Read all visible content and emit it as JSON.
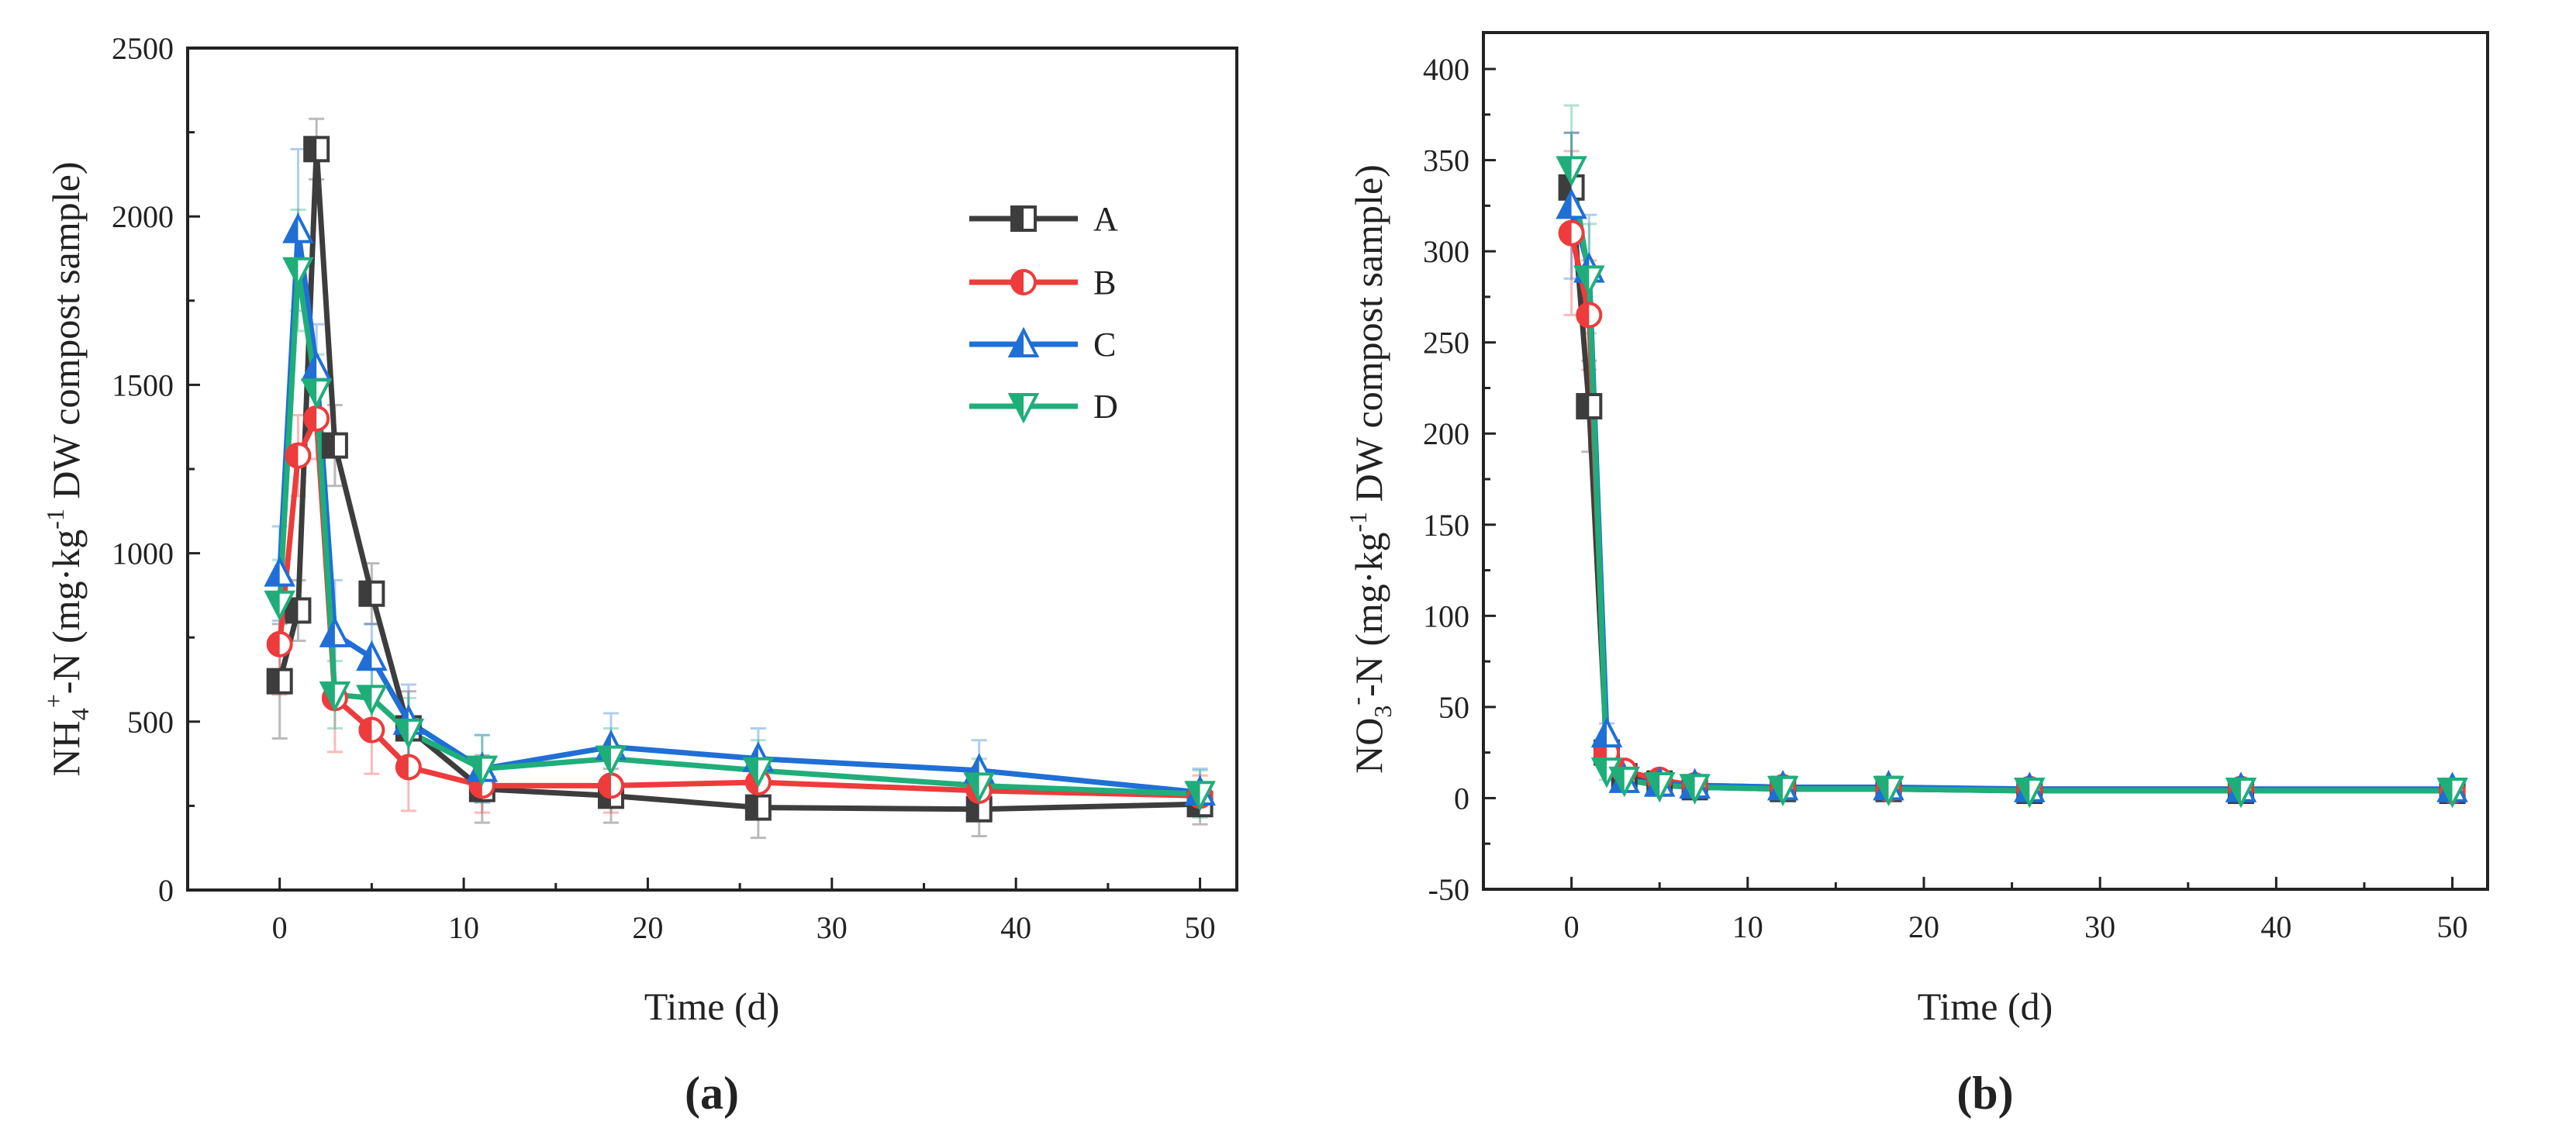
{
  "colors": {
    "A": "#3d3d3d",
    "B": "#ee3b3b",
    "C": "#1f6fd6",
    "D": "#1fae7a"
  },
  "legend": [
    {
      "name": "A",
      "marker": "square"
    },
    {
      "name": "B",
      "marker": "circle"
    },
    {
      "name": "C",
      "marker": "triangle-up"
    },
    {
      "name": "D",
      "marker": "triangle-down"
    }
  ],
  "chart_data": [
    {
      "panel_label": "(a)",
      "type": "line",
      "xlabel": "Time (d)",
      "ylabel_parts": {
        "nh_prefix": "NH",
        "sub4": "4",
        "sup_plus": "+",
        "n_part": "-N (mg·kg",
        "sup_minus1": "-1",
        "rest": " DW compost sample)"
      },
      "xlim": [
        -5,
        52
      ],
      "ylim": [
        0,
        2500
      ],
      "xticks": [
        0,
        10,
        20,
        30,
        40,
        50
      ],
      "yticks": [
        0,
        500,
        1000,
        1500,
        2000,
        2500
      ],
      "series": [
        {
          "name": "A",
          "x": [
            0,
            1,
            2,
            3,
            5,
            7,
            11,
            18,
            26,
            38,
            50
          ],
          "y": [
            620,
            830,
            2200,
            1320,
            880,
            480,
            300,
            280,
            245,
            240,
            255
          ],
          "err": [
            170,
            90,
            90,
            120,
            90,
            110,
            100,
            80,
            90,
            80,
            60
          ]
        },
        {
          "name": "B",
          "x": [
            0,
            1,
            2,
            3,
            5,
            7,
            11,
            18,
            26,
            38,
            50
          ],
          "y": [
            730,
            1290,
            1400,
            570,
            475,
            365,
            310,
            310,
            320,
            295,
            280
          ],
          "err": [
            150,
            120,
            120,
            160,
            130,
            130,
            80,
            80,
            70,
            70,
            60
          ]
        },
        {
          "name": "C",
          "x": [
            0,
            1,
            2,
            3,
            5,
            7,
            11,
            18,
            26,
            38,
            50
          ],
          "y": [
            940,
            1960,
            1550,
            760,
            690,
            500,
            360,
            425,
            390,
            355,
            290
          ],
          "err": [
            140,
            240,
            130,
            160,
            100,
            110,
            100,
            100,
            90,
            90,
            70
          ]
        },
        {
          "name": "D",
          "x": [
            0,
            1,
            2,
            3,
            5,
            7,
            11,
            18,
            26,
            38,
            50
          ],
          "y": [
            850,
            1840,
            1480,
            580,
            570,
            470,
            360,
            390,
            355,
            310,
            285
          ],
          "err": [
            130,
            180,
            110,
            100,
            100,
            100,
            100,
            90,
            90,
            80,
            70
          ]
        }
      ]
    },
    {
      "panel_label": "(b)",
      "type": "line",
      "xlabel": "Time (d)",
      "ylabel_parts": {
        "no_prefix": "NO",
        "sub3": "3",
        "sup_minus": "-",
        "n_part": "-N (mg·kg",
        "sup_minus1": "-1",
        "rest": " DW compost sample)"
      },
      "xlim": [
        -5,
        52
      ],
      "ylim": [
        -50,
        420
      ],
      "xticks": [
        0,
        10,
        20,
        30,
        40,
        50
      ],
      "yticks": [
        -50,
        0,
        50,
        100,
        150,
        200,
        250,
        300,
        350,
        400
      ],
      "series": [
        {
          "name": "A",
          "x": [
            0,
            1,
            2,
            3,
            5,
            7,
            12,
            18,
            26,
            38,
            50
          ],
          "y": [
            335,
            215,
            25,
            12,
            8,
            6,
            5,
            5,
            4,
            4,
            4
          ],
          "err": [
            30,
            25,
            5,
            3,
            2,
            2,
            1,
            1,
            1,
            1,
            1
          ]
        },
        {
          "name": "B",
          "x": [
            0,
            1,
            2,
            3,
            5,
            7,
            12,
            18,
            26,
            38,
            50
          ],
          "y": [
            310,
            265,
            25,
            15,
            10,
            7,
            6,
            5,
            5,
            5,
            4
          ],
          "err": [
            45,
            30,
            5,
            3,
            2,
            2,
            1,
            1,
            1,
            1,
            1
          ]
        },
        {
          "name": "C",
          "x": [
            0,
            1,
            2,
            3,
            5,
            7,
            12,
            18,
            26,
            38,
            50
          ],
          "y": [
            325,
            290,
            35,
            10,
            8,
            7,
            6,
            6,
            5,
            5,
            5
          ],
          "err": [
            40,
            30,
            6,
            3,
            2,
            2,
            1,
            1,
            1,
            1,
            1
          ]
        },
        {
          "name": "D",
          "x": [
            0,
            1,
            2,
            3,
            5,
            7,
            12,
            18,
            26,
            38,
            50
          ],
          "y": [
            345,
            285,
            15,
            10,
            7,
            6,
            5,
            5,
            4,
            4,
            4
          ],
          "err": [
            35,
            30,
            5,
            3,
            2,
            2,
            1,
            1,
            1,
            1,
            1
          ]
        }
      ]
    }
  ]
}
